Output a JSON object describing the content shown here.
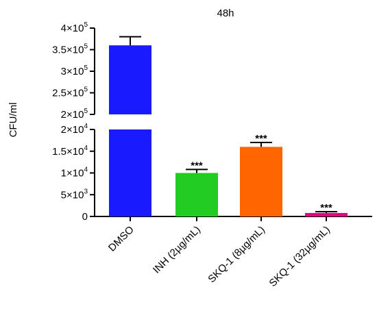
{
  "chart_data": {
    "type": "bar",
    "title": "48h",
    "ylabel": "CFU/ml",
    "xlabel": "",
    "categories": [
      "DMSO",
      "INH (2µg/mL)",
      "SKQ-1 (8µg/mL)",
      "SKQ-1 (32µg/mL)"
    ],
    "values": [
      360000,
      10000,
      16000,
      800
    ],
    "errors": [
      20000,
      800,
      1000,
      300
    ],
    "colors": [
      "#1a1aff",
      "#22cc22",
      "#ff6600",
      "#e6007e"
    ],
    "significance": [
      "",
      "***",
      "***",
      "***"
    ],
    "axis_break": {
      "lower_ylim": [
        0,
        20000
      ],
      "upper_ylim": [
        200000,
        400000
      ]
    },
    "lower_ticks": [
      {
        "value": 0,
        "mant": "0",
        "exp": ""
      },
      {
        "value": 5000,
        "mant": "5×10",
        "exp": "3"
      },
      {
        "value": 10000,
        "mant": "1×10",
        "exp": "4"
      },
      {
        "value": 15000,
        "mant": "1.5×10",
        "exp": "4"
      },
      {
        "value": 20000,
        "mant": "2×10",
        "exp": "4"
      }
    ],
    "upper_ticks": [
      {
        "value": 200000,
        "mant": "2×10",
        "exp": "5"
      },
      {
        "value": 250000,
        "mant": "2.5×10",
        "exp": "5"
      },
      {
        "value": 300000,
        "mant": "3×10",
        "exp": "5"
      },
      {
        "value": 350000,
        "mant": "3.5×10",
        "exp": "5"
      },
      {
        "value": 400000,
        "mant": "4×10",
        "exp": "5"
      }
    ]
  }
}
